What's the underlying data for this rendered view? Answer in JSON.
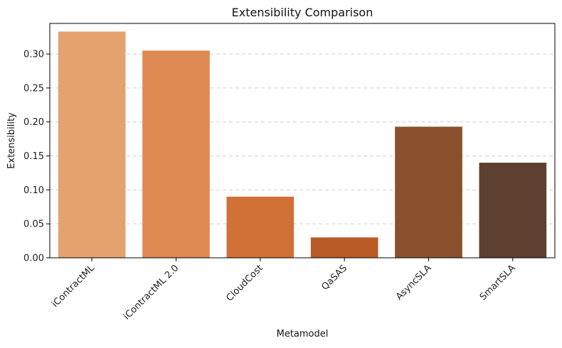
{
  "chart_data": {
    "type": "bar",
    "title": "Extensibility Comparison",
    "xlabel": "Metamodel",
    "ylabel": "Extensibility",
    "categories": [
      "iContractML",
      "iContractML 2.0",
      "CloudCost",
      "QaSAS",
      "AsyncSLA",
      "SmartSLA"
    ],
    "values": [
      0.333,
      0.305,
      0.09,
      0.03,
      0.193,
      0.14
    ],
    "colors": [
      "#E5A26E",
      "#DE8A52",
      "#D17138",
      "#B95B27",
      "#8A502E",
      "#5E4030"
    ],
    "ylim": [
      0,
      0.345
    ],
    "yticks": [
      "0.00",
      "0.05",
      "0.10",
      "0.15",
      "0.20",
      "0.25",
      "0.30"
    ],
    "grid": "y-dashed",
    "x_tick_rotation": 45
  }
}
